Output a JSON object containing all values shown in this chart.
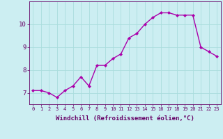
{
  "x": [
    0,
    1,
    2,
    3,
    4,
    5,
    6,
    7,
    8,
    9,
    10,
    11,
    12,
    13,
    14,
    15,
    16,
    17,
    18,
    19,
    20,
    21,
    22,
    23
  ],
  "y": [
    7.1,
    7.1,
    7.0,
    6.8,
    7.1,
    7.3,
    7.7,
    7.3,
    8.2,
    8.2,
    8.5,
    8.7,
    9.4,
    9.6,
    10.0,
    10.3,
    10.5,
    10.5,
    10.4,
    10.4,
    10.4,
    9.0,
    8.8,
    8.6
  ],
  "line_color": "#aa00aa",
  "marker": "D",
  "marker_size": 2.0,
  "background_color": "#cceef2",
  "grid_color": "#aadddd",
  "xlabel": "Windchill (Refroidissement éolien,°C)",
  "xlabel_color": "#660066",
  "tick_color": "#660066",
  "xlim": [
    -0.5,
    23.5
  ],
  "ylim": [
    6.5,
    11.0
  ],
  "yticks": [
    7,
    8,
    9,
    10
  ],
  "xtick_labels": [
    "0",
    "1",
    "2",
    "3",
    "4",
    "5",
    "6",
    "7",
    "8",
    "9",
    "10",
    "11",
    "12",
    "13",
    "14",
    "15",
    "16",
    "17",
    "18",
    "19",
    "20",
    "21",
    "22",
    "23"
  ],
  "line_width": 1.0,
  "font_family": "monospace",
  "xlabel_fontsize": 6.5,
  "xtick_fontsize": 5.0,
  "ytick_fontsize": 6.5
}
